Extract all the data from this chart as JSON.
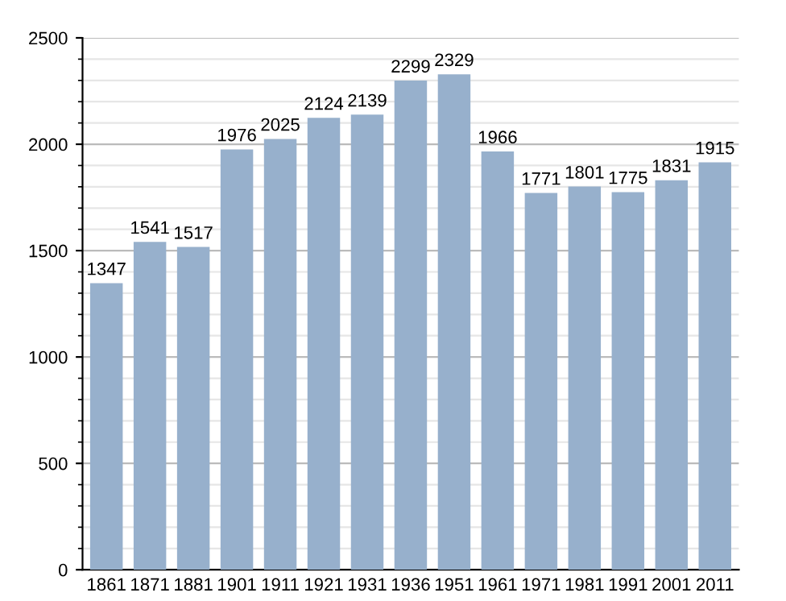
{
  "chart_data": {
    "type": "bar",
    "categories": [
      "1861",
      "1871",
      "1881",
      "1901",
      "1911",
      "1921",
      "1931",
      "1936",
      "1951",
      "1961",
      "1971",
      "1981",
      "1991",
      "2001",
      "2011"
    ],
    "values": [
      1347,
      1541,
      1517,
      1976,
      2025,
      2124,
      2139,
      2299,
      2329,
      1966,
      1771,
      1801,
      1775,
      1831,
      1915
    ],
    "color": "#97b0cc",
    "ylim": [
      0,
      2500
    ],
    "yticks": [
      0,
      500,
      1000,
      1500,
      2000,
      2500
    ],
    "grid": "y",
    "data_labels": true
  }
}
